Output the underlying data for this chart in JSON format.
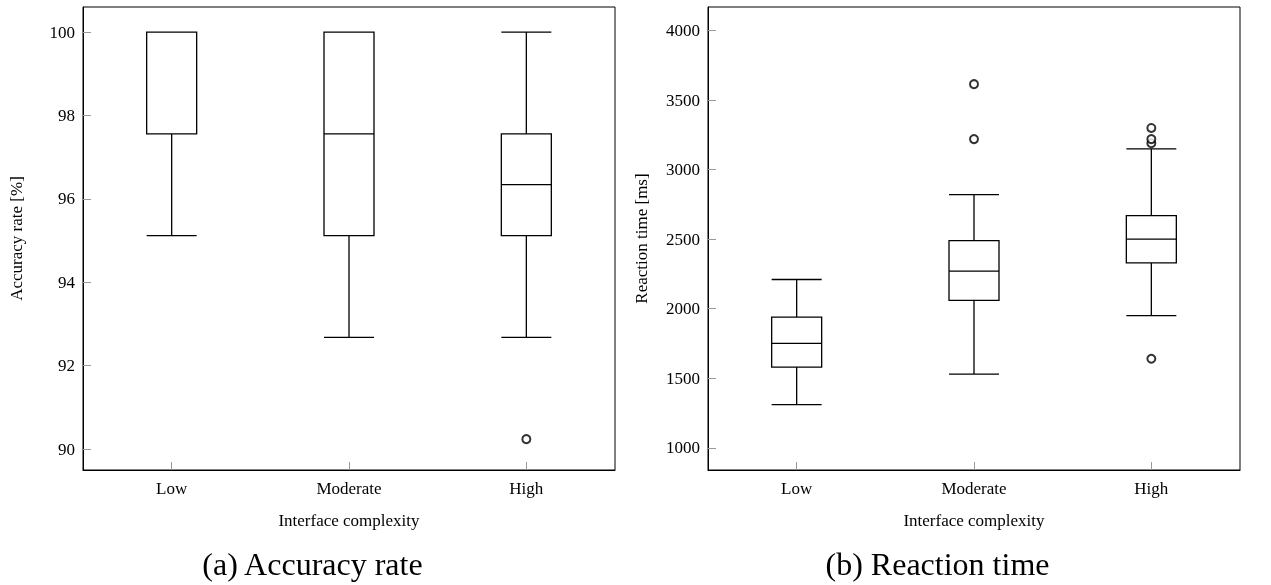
{
  "chart_data": [
    {
      "type": "box",
      "title": "(a) Accuracy rate",
      "xlabel": "Interface complexity",
      "ylabel": "Accuracy rate [%]",
      "categories": [
        "Low",
        "Moderate",
        "High"
      ],
      "ylim": [
        89.5,
        100.6
      ],
      "yticks": [
        90,
        92,
        94,
        96,
        98,
        100
      ],
      "grid": false,
      "boxes": [
        {
          "low": 95.12,
          "q1": 97.56,
          "median": 100,
          "q3": 100,
          "high": 100
        },
        {
          "low": 92.68,
          "q1": 95.12,
          "median": 97.56,
          "q3": 100,
          "high": 100
        },
        {
          "low": 92.68,
          "q1": 95.12,
          "median": 96.34,
          "q3": 97.56,
          "high": 100,
          "outliers": [
            90.24
          ]
        }
      ]
    },
    {
      "type": "box",
      "title": "(b) Reaction time",
      "xlabel": "Interface complexity",
      "ylabel": "Reaction time [ms]",
      "categories": [
        "Low",
        "Moderate",
        "High"
      ],
      "ylim": [
        840,
        4170
      ],
      "yticks": [
        1000,
        1500,
        2000,
        2500,
        3000,
        3500,
        4000
      ],
      "grid": false,
      "boxes": [
        {
          "low": 1310,
          "q1": 1580,
          "median": 1750,
          "q3": 1940,
          "high": 2210
        },
        {
          "low": 1530,
          "q1": 2060,
          "median": 2270,
          "q3": 2490,
          "high": 2820,
          "outliers": [
            3220,
            3615
          ]
        },
        {
          "low": 1950,
          "q1": 2330,
          "median": 2500,
          "q3": 2670,
          "high": 3150,
          "outliers": [
            1640,
            3190,
            3220,
            3300
          ]
        }
      ]
    }
  ]
}
